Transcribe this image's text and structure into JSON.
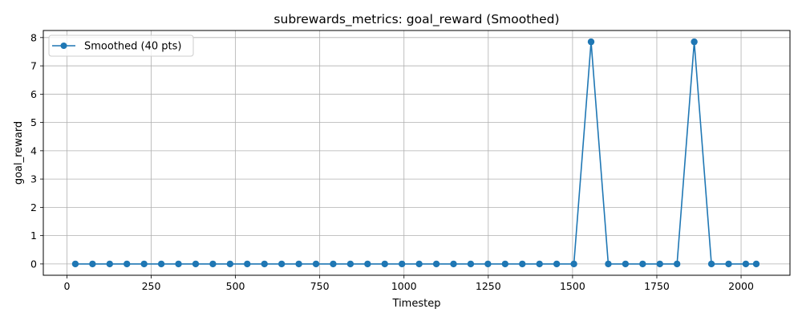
{
  "chart_data": {
    "type": "line",
    "title": "subrewards_metrics: goal_reward (Smoothed)",
    "xlabel": "Timestep",
    "ylabel": "goal_reward",
    "xlim": [
      -70,
      2145
    ],
    "ylim": [
      -0.4,
      8.25
    ],
    "xticks": [
      0,
      250,
      500,
      750,
      1000,
      1250,
      1500,
      1750,
      2000
    ],
    "yticks": [
      0,
      1,
      2,
      3,
      4,
      5,
      6,
      7,
      8
    ],
    "grid": true,
    "legend_position": "top-left",
    "series": [
      {
        "name": "Smoothed (40 pts)",
        "color": "#1f77b4",
        "marker": "circle",
        "x": [
          25,
          76,
          127,
          178,
          229,
          280,
          331,
          382,
          433,
          484,
          535,
          586,
          637,
          688,
          739,
          790,
          841,
          892,
          943,
          994,
          1045,
          1096,
          1147,
          1198,
          1249,
          1300,
          1351,
          1402,
          1453,
          1504,
          1555,
          1606,
          1657,
          1708,
          1759,
          1810,
          1861,
          1912,
          1963,
          2014,
          2045
        ],
        "y": [
          0,
          0,
          0,
          0,
          0,
          0,
          0,
          0,
          0,
          0,
          0,
          0,
          0,
          0,
          0,
          0,
          0,
          0,
          0,
          0,
          0,
          0,
          0,
          0,
          0,
          0,
          0,
          0,
          0,
          0,
          7.85,
          0,
          0,
          0,
          0,
          0,
          7.85,
          0,
          0,
          0,
          0
        ]
      }
    ]
  }
}
